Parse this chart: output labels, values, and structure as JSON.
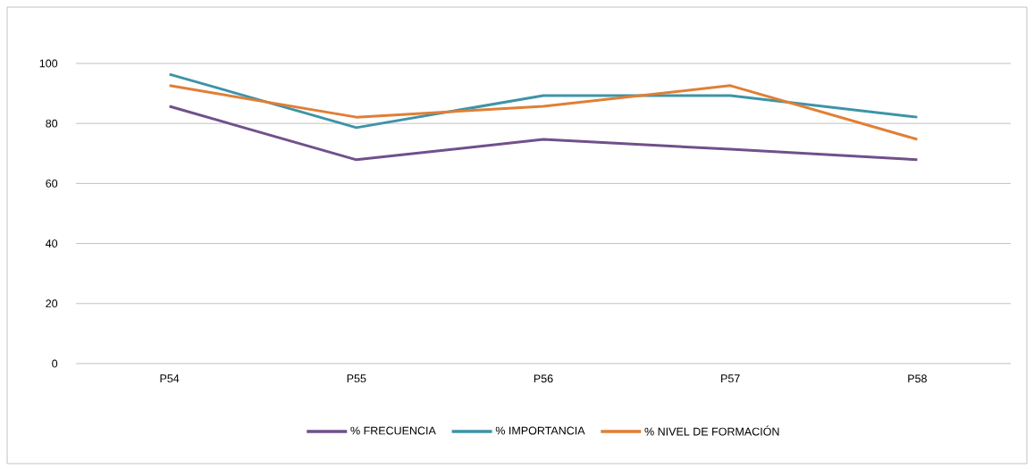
{
  "chart_data": {
    "type": "line",
    "categories": [
      "P54",
      "P55",
      "P56",
      "P57",
      "P58"
    ],
    "series": [
      {
        "name": "% FRECUENCIA",
        "color": "#70508c",
        "values": [
          85.7,
          67.9,
          74.7,
          71.4,
          67.9
        ]
      },
      {
        "name": "% IMPORTANCIA",
        "color": "#3e93a8",
        "values": [
          96.4,
          78.6,
          89.3,
          89.3,
          82.1
        ]
      },
      {
        "name": "% NIVEL DE FORMACIÓN",
        "color": "#e07f35",
        "values": [
          92.6,
          82.1,
          85.7,
          92.6,
          74.7
        ]
      }
    ],
    "ylim": [
      0,
      100
    ],
    "yticks": [
      0,
      20,
      40,
      60,
      80,
      100
    ],
    "grid": "y",
    "legend": "bottom",
    "marker": "none",
    "line_style": "solid"
  }
}
